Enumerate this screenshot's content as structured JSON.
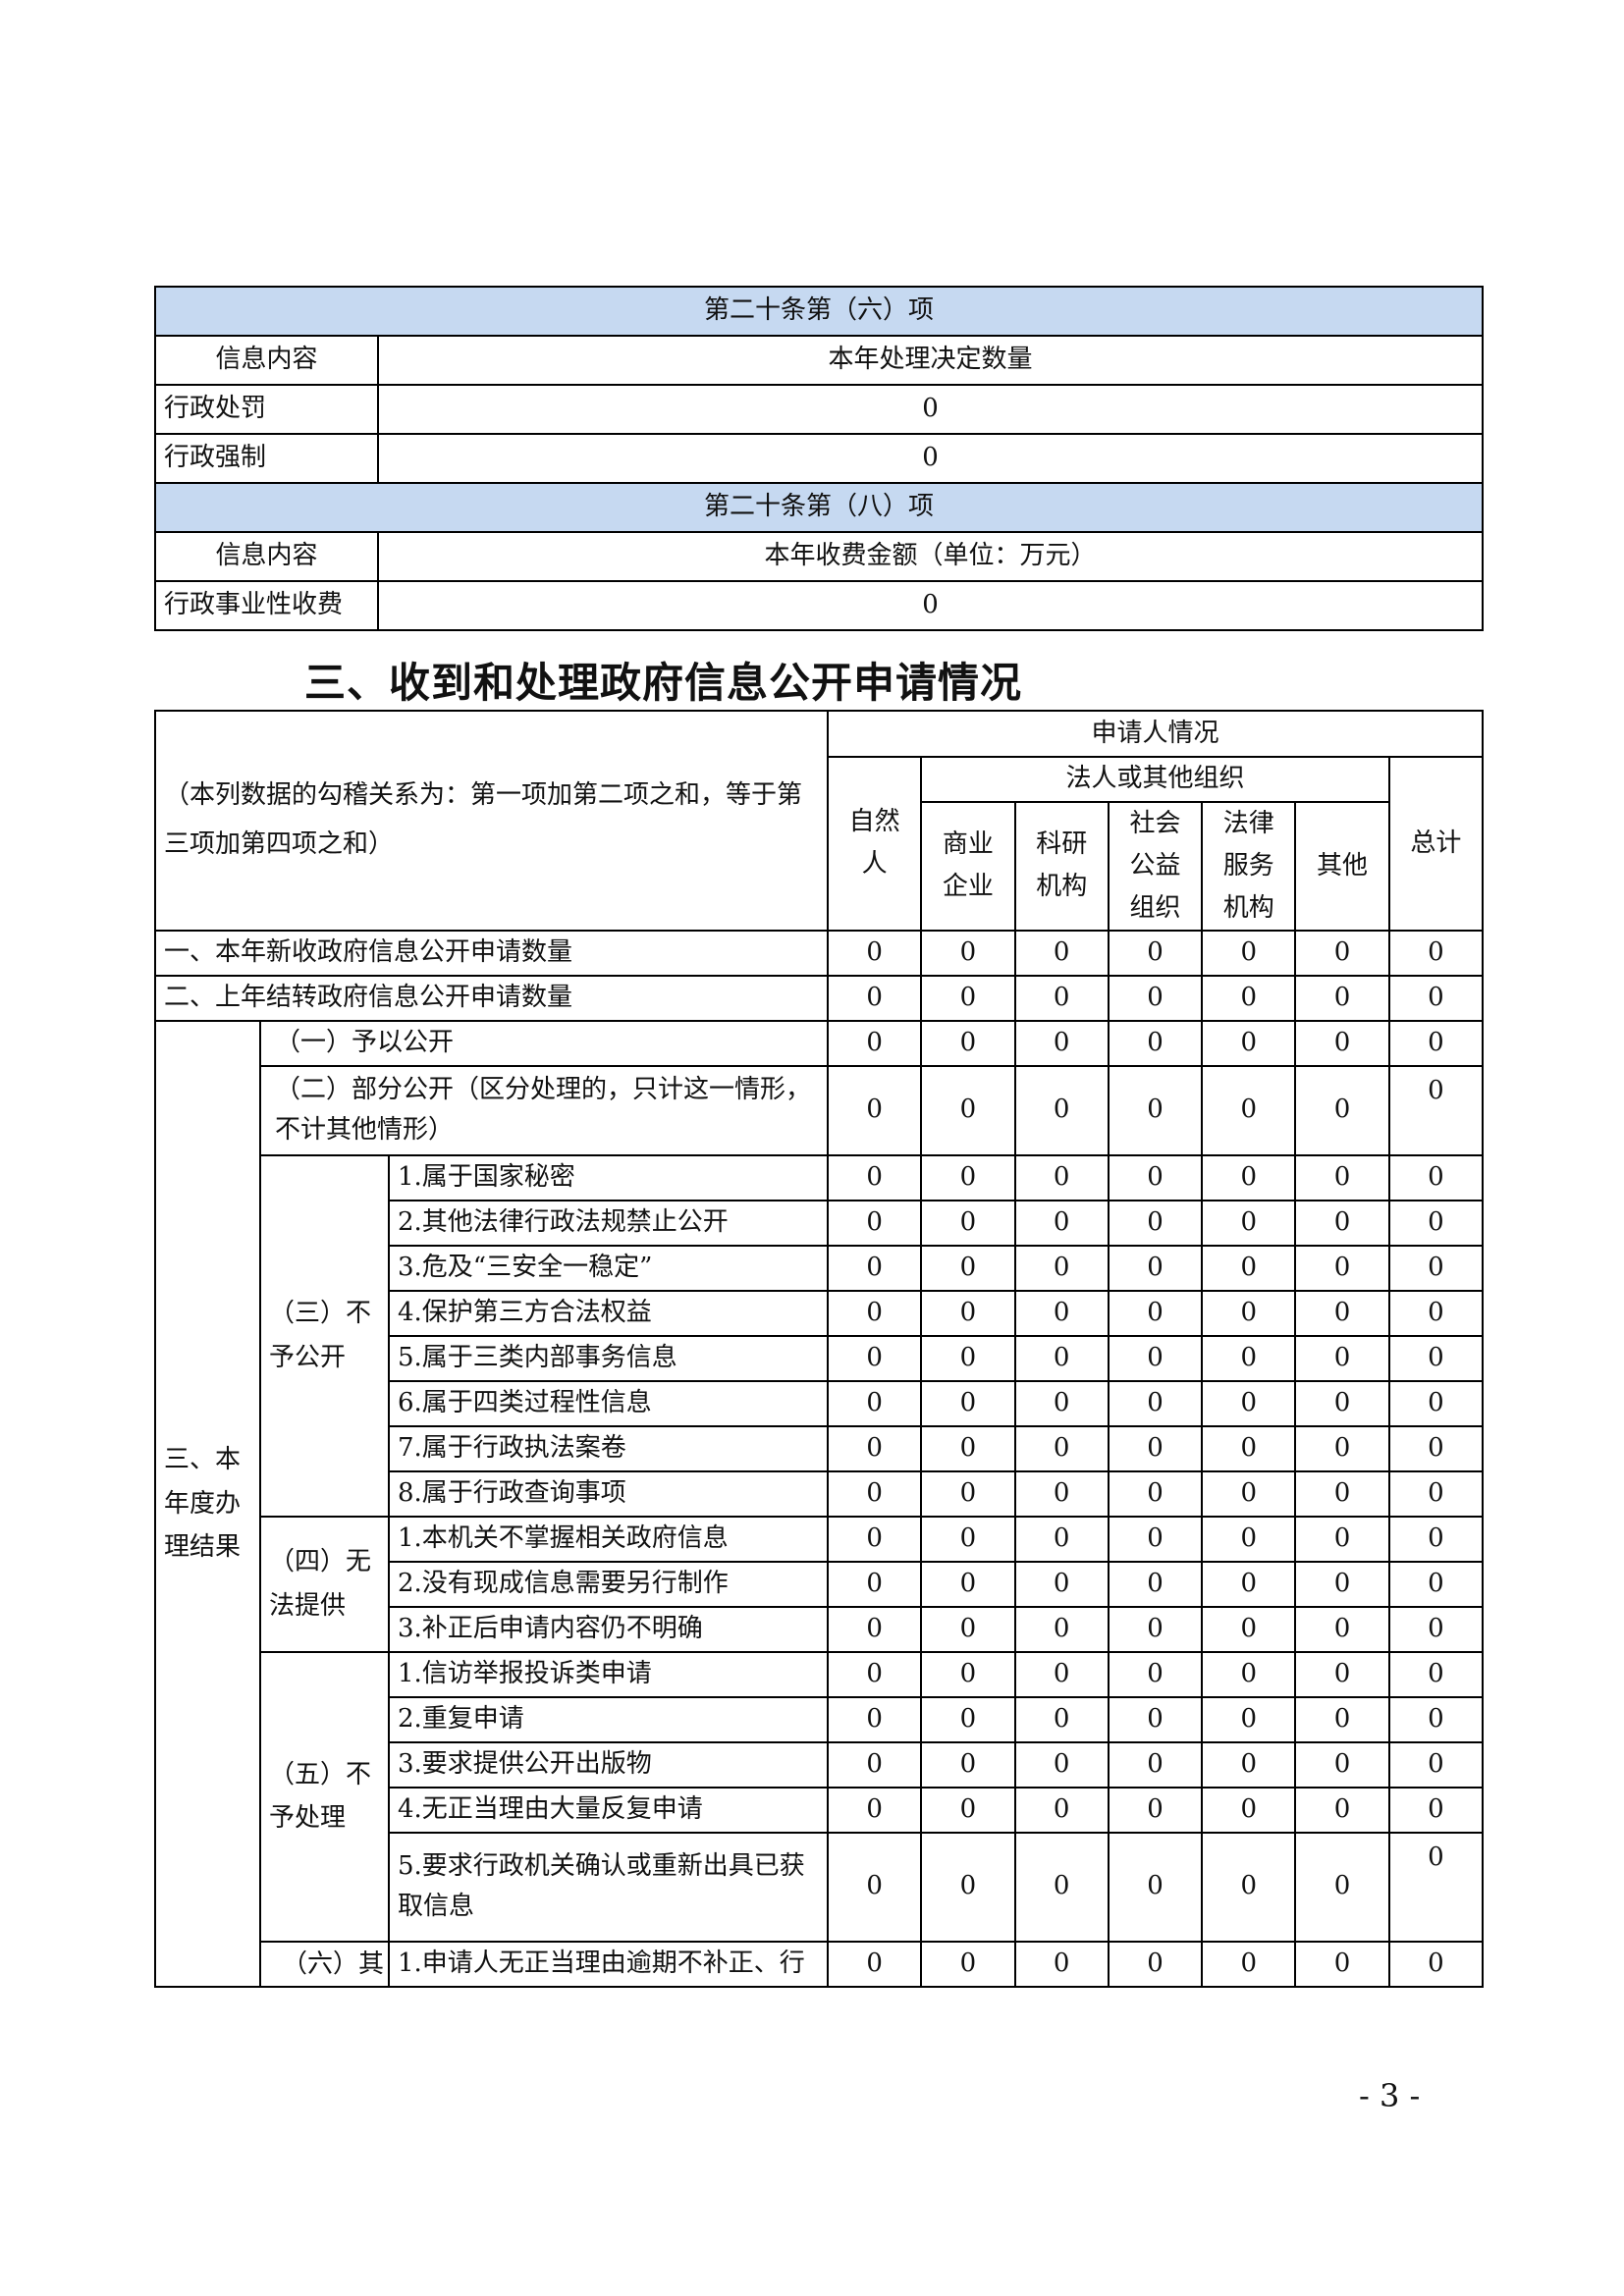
{
  "table1": {
    "section6_header": "第二十条第（六）项",
    "section6_col1": "信息内容",
    "section6_col2": "本年处理决定数量",
    "section6_rows": [
      {
        "label": "行政处罚",
        "value": "0"
      },
      {
        "label": "行政强制",
        "value": "0"
      }
    ],
    "section8_header": "第二十条第（八）项",
    "section8_col1": "信息内容",
    "section8_col2": "本年收费金额（单位：万元）",
    "section8_rows": [
      {
        "label": "行政事业性收费",
        "value": "0"
      }
    ]
  },
  "section_title": "三、收到和处理政府信息公开申请情况",
  "table2": {
    "note": "（本列数据的勾稽关系为：第一项加第二项之和，等于第三项加第四项之和）",
    "applicant_header": "申请人情况",
    "natural_person": "自然人",
    "legal_header": "法人或其他组织",
    "legal_cols": [
      "商业企业",
      "科研机构",
      "社会公益组织",
      "法律服务机构",
      "其他"
    ],
    "total": "总计",
    "top_rows": [
      {
        "label": "一、本年新收政府信息公开申请数量",
        "values": [
          "0",
          "0",
          "0",
          "0",
          "0",
          "0",
          "0"
        ]
      },
      {
        "label": "二、上年结转政府信息公开申请数量",
        "values": [
          "0",
          "0",
          "0",
          "0",
          "0",
          "0",
          "0"
        ]
      }
    ],
    "result_label": "三、本年度办理结果",
    "result_items": [
      {
        "label": "（一）予以公开",
        "values": [
          "0",
          "0",
          "0",
          "0",
          "0",
          "0",
          "0"
        ]
      },
      {
        "label": "（二）部分公开（区分处理的，只计这一情形，不计其他情形）",
        "values": [
          "0",
          "0",
          "0",
          "0",
          "0",
          "0",
          "0"
        ]
      },
      {
        "group": "（三）不予公开",
        "items": [
          {
            "label": "1.属于国家秘密",
            "values": [
              "0",
              "0",
              "0",
              "0",
              "0",
              "0",
              "0"
            ]
          },
          {
            "label": "2.其他法律行政法规禁止公开",
            "values": [
              "0",
              "0",
              "0",
              "0",
              "0",
              "0",
              "0"
            ]
          },
          {
            "label": "3.危及“三安全一稳定”",
            "values": [
              "0",
              "0",
              "0",
              "0",
              "0",
              "0",
              "0"
            ]
          },
          {
            "label": "4.保护第三方合法权益",
            "values": [
              "0",
              "0",
              "0",
              "0",
              "0",
              "0",
              "0"
            ]
          },
          {
            "label": "5.属于三类内部事务信息",
            "values": [
              "0",
              "0",
              "0",
              "0",
              "0",
              "0",
              "0"
            ]
          },
          {
            "label": "6.属于四类过程性信息",
            "values": [
              "0",
              "0",
              "0",
              "0",
              "0",
              "0",
              "0"
            ]
          },
          {
            "label": "7.属于行政执法案卷",
            "values": [
              "0",
              "0",
              "0",
              "0",
              "0",
              "0",
              "0"
            ]
          },
          {
            "label": "8.属于行政查询事项",
            "values": [
              "0",
              "0",
              "0",
              "0",
              "0",
              "0",
              "0"
            ]
          }
        ]
      },
      {
        "group": "（四）无法提供",
        "items": [
          {
            "label": "1.本机关不掌握相关政府信息",
            "values": [
              "0",
              "0",
              "0",
              "0",
              "0",
              "0",
              "0"
            ]
          },
          {
            "label": "2.没有现成信息需要另行制作",
            "values": [
              "0",
              "0",
              "0",
              "0",
              "0",
              "0",
              "0"
            ]
          },
          {
            "label": "3.补正后申请内容仍不明确",
            "values": [
              "0",
              "0",
              "0",
              "0",
              "0",
              "0",
              "0"
            ]
          }
        ]
      },
      {
        "group": "（五）不予处理",
        "items": [
          {
            "label": "1.信访举报投诉类申请",
            "values": [
              "0",
              "0",
              "0",
              "0",
              "0",
              "0",
              "0"
            ]
          },
          {
            "label": "2.重复申请",
            "values": [
              "0",
              "0",
              "0",
              "0",
              "0",
              "0",
              "0"
            ]
          },
          {
            "label": "3.要求提供公开出版物",
            "values": [
              "0",
              "0",
              "0",
              "0",
              "0",
              "0",
              "0"
            ]
          },
          {
            "label": "4.无正当理由大量反复申请",
            "values": [
              "0",
              "0",
              "0",
              "0",
              "0",
              "0",
              "0"
            ]
          },
          {
            "label": "5.要求行政机关确认或重新出具已获取信息",
            "values": [
              "0",
              "0",
              "0",
              "0",
              "0",
              "0",
              "0"
            ]
          }
        ]
      },
      {
        "group": "（六）其",
        "items": [
          {
            "label": "1.申请人无正当理由逾期不补正、行",
            "values": [
              "0",
              "0",
              "0",
              "0",
              "0",
              "0",
              "0"
            ]
          }
        ]
      }
    ]
  },
  "page_number": "- 3 -",
  "colors": {
    "header_band": "#c6d9f1",
    "border": "#000000"
  }
}
